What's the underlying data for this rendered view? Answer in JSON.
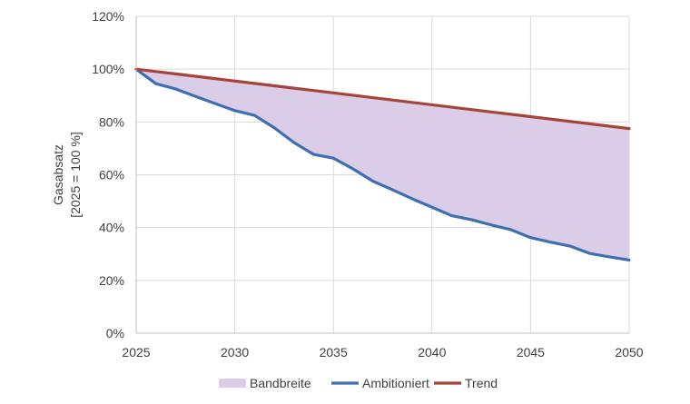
{
  "chart_data": {
    "type": "area",
    "x": [
      2025,
      2026,
      2027,
      2028,
      2029,
      2030,
      2031,
      2032,
      2033,
      2034,
      2035,
      2036,
      2037,
      2038,
      2039,
      2040,
      2041,
      2042,
      2043,
      2044,
      2045,
      2046,
      2047,
      2048,
      2049,
      2050
    ],
    "series": [
      {
        "name": "Ambitioniert",
        "color": "#3f6fb0",
        "values": [
          1.0,
          0.945,
          0.925,
          0.897,
          0.87,
          0.843,
          0.825,
          0.778,
          0.722,
          0.677,
          0.663,
          0.622,
          0.576,
          0.543,
          0.509,
          0.477,
          0.445,
          0.43,
          0.41,
          0.392,
          0.362,
          0.345,
          0.33,
          0.302,
          0.289,
          0.277
        ]
      },
      {
        "name": "Trend",
        "color": "#a5453a",
        "values": [
          1.0,
          0.991,
          0.982,
          0.973,
          0.964,
          0.955,
          0.946,
          0.937,
          0.928,
          0.919,
          0.91,
          0.901,
          0.892,
          0.883,
          0.874,
          0.865,
          0.856,
          0.847,
          0.838,
          0.829,
          0.82,
          0.811,
          0.802,
          0.793,
          0.784,
          0.775
        ]
      }
    ],
    "band": {
      "name": "Bandbreite",
      "color": "#dbcde7",
      "between": [
        "Ambitioniert",
        "Trend"
      ]
    },
    "legend_order": [
      "Bandbreite",
      "Ambitioniert",
      "Trend"
    ],
    "xlim": [
      2025,
      2050
    ],
    "ylim": [
      0,
      1.2
    ],
    "x_ticks": [
      "2025",
      "2030",
      "2035",
      "2040",
      "2045",
      "2050"
    ],
    "y_ticks": [
      "0%",
      "20%",
      "40%",
      "60%",
      "80%",
      "100%",
      "120%"
    ],
    "ylabel_lines": [
      "Gasabsatz",
      "[2025 = 100 %]"
    ],
    "grid": true,
    "grid_color": "#d9d9d9",
    "legend_position": "bottom"
  }
}
